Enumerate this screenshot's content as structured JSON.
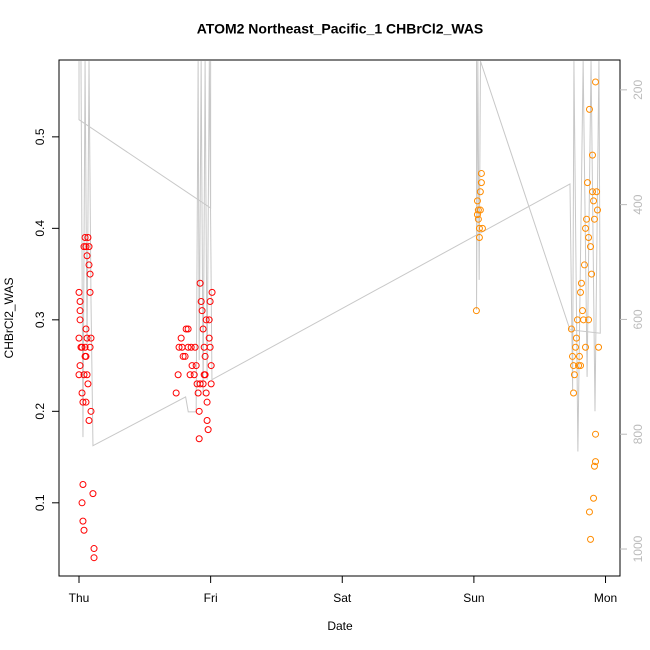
{
  "chart_data": {
    "type": "scatter",
    "title": "ATOM2 Northeast_Pacific_1 CHBrCl2_WAS",
    "xlabel": "Date",
    "ylabel": "CHBrCl2_WAS",
    "xlim": [
      -0.152,
      4.11
    ],
    "xticks": [
      {
        "value": 0,
        "label": "Thu"
      },
      {
        "value": 1,
        "label": "Fri"
      },
      {
        "value": 2,
        "label": "Sat"
      },
      {
        "value": 3,
        "label": "Sun"
      },
      {
        "value": 4,
        "label": "Mon"
      }
    ],
    "ylim": [
      0.02,
      0.584
    ],
    "yticks": [
      0.1,
      0.2,
      0.3,
      0.4,
      0.5
    ],
    "y2lim": [
      1047,
      148
    ],
    "y2ticks": [
      200,
      400,
      600,
      800,
      1000
    ],
    "series": [
      {
        "type": "scatter",
        "color": "#ff0000",
        "x": [
          0,
          0.008,
          0.008,
          0.008,
          0,
          0.015,
          0.023,
          0.008,
          0,
          0.023,
          0.03,
          0.038,
          0.046,
          0.053,
          0.061,
          0.068,
          0.076,
          0.084,
          0.076,
          0.084,
          0.053,
          0.061,
          0.046,
          0.053,
          0.061,
          0.068,
          0.076,
          0.091,
          0.053,
          0.03,
          0.023,
          0.03,
          0.038,
          0.106,
          0.114,
          0.114,
          0.084,
          0.091,
          0.038,
          0.046,
          0.738,
          0.753,
          0.76,
          0.776,
          0.783,
          0.791,
          0.806,
          0.814,
          0.829,
          0.829,
          0.844,
          0.852,
          0.859,
          0.875,
          0.882,
          0.89,
          0.897,
          0.905,
          0.913,
          0.913,
          0.92,
          0.928,
          0.935,
          0.943,
          0.951,
          0.958,
          0.958,
          0.966,
          0.973,
          0.973,
          0.981,
          0.989,
          0.989,
          0.996,
          0.996,
          1.004,
          1.004,
          1.011,
          0.92,
          0.943,
          0.951,
          0.966
        ],
        "values": [
          0.33,
          0.32,
          0.31,
          0.3,
          0.28,
          0.27,
          0.27,
          0.25,
          0.24,
          0.22,
          0.21,
          0.38,
          0.39,
          0.38,
          0.37,
          0.39,
          0.38,
          0.35,
          0.36,
          0.33,
          0.29,
          0.28,
          0.27,
          0.26,
          0.24,
          0.23,
          0.19,
          0.2,
          0.21,
          0.12,
          0.1,
          0.08,
          0.07,
          0.11,
          0.05,
          0.04,
          0.27,
          0.28,
          0.24,
          0.26,
          0.22,
          0.24,
          0.27,
          0.28,
          0.27,
          0.26,
          0.26,
          0.29,
          0.29,
          0.27,
          0.24,
          0.27,
          0.25,
          0.24,
          0.27,
          0.25,
          0.23,
          0.22,
          0.2,
          0.17,
          0.34,
          0.32,
          0.31,
          0.29,
          0.27,
          0.26,
          0.24,
          0.22,
          0.21,
          0.19,
          0.18,
          0.3,
          0.28,
          0.32,
          0.27,
          0.25,
          0.23,
          0.33,
          0.23,
          0.23,
          0.24,
          0.3
        ]
      },
      {
        "type": "scatter",
        "color": "#ff8c00",
        "x": [
          3.019,
          3.027,
          3.034,
          3.034,
          3.042,
          3.042,
          3.049,
          3.057,
          3.057,
          3.065,
          3.027,
          3.049,
          3.741,
          3.749,
          3.757,
          3.764,
          3.757,
          3.772,
          3.779,
          3.787,
          3.795,
          3.802,
          3.81,
          3.817,
          3.825,
          3.833,
          3.84,
          3.848,
          3.856,
          3.863,
          3.871,
          3.878,
          3.886,
          3.894,
          3.901,
          3.909,
          3.916,
          3.924,
          3.932,
          3.939,
          3.947,
          3.886,
          3.878,
          3.909,
          3.916,
          3.924,
          3.924,
          3.81,
          3.848,
          3.871,
          3.901
        ],
        "values": [
          0.31,
          0.43,
          0.42,
          0.41,
          0.4,
          0.39,
          0.44,
          0.45,
          0.46,
          0.4,
          0.415,
          0.42,
          0.29,
          0.26,
          0.25,
          0.24,
          0.22,
          0.27,
          0.28,
          0.3,
          0.25,
          0.26,
          0.33,
          0.34,
          0.31,
          0.3,
          0.36,
          0.4,
          0.41,
          0.45,
          0.39,
          0.53,
          0.38,
          0.35,
          0.48,
          0.43,
          0.41,
          0.56,
          0.44,
          0.42,
          0.27,
          0.06,
          0.09,
          0.105,
          0.14,
          0.145,
          0.175,
          0.25,
          0.27,
          0.3,
          0.44
        ]
      },
      {
        "type": "line",
        "axis": "y2",
        "color": "#c8c8c8",
        "x": [
          0,
          0,
          1.0,
          1.0,
          null,
          0.015,
          0.03,
          0.046,
          0.061,
          0.076,
          0.091,
          0.106,
          0.81,
          0.83,
          0.89,
          0.905,
          0.913,
          0.928,
          0.943,
          0.958,
          0.973,
          0.99,
          1.01,
          3.73,
          3.75,
          3.76,
          3.79,
          3.83,
          3.86,
          3.89,
          3.92,
          3.95,
          3.96,
          3.73,
          null,
          3.02,
          3.02,
          3.03,
          3.04,
          3.05,
          3.73
        ],
        "values": [
          150,
          252,
          406,
          150,
          null,
          150,
          805,
          150,
          653,
          150,
          566,
          820,
          735,
          761,
          761,
          150,
          671,
          150,
          732,
          150,
          705,
          150,
          705,
          364,
          723,
          150,
          830,
          150,
          700,
          150,
          760,
          150,
          624,
          618,
          null,
          150,
          583,
          150,
          531,
          150,
          618
        ]
      }
    ]
  }
}
